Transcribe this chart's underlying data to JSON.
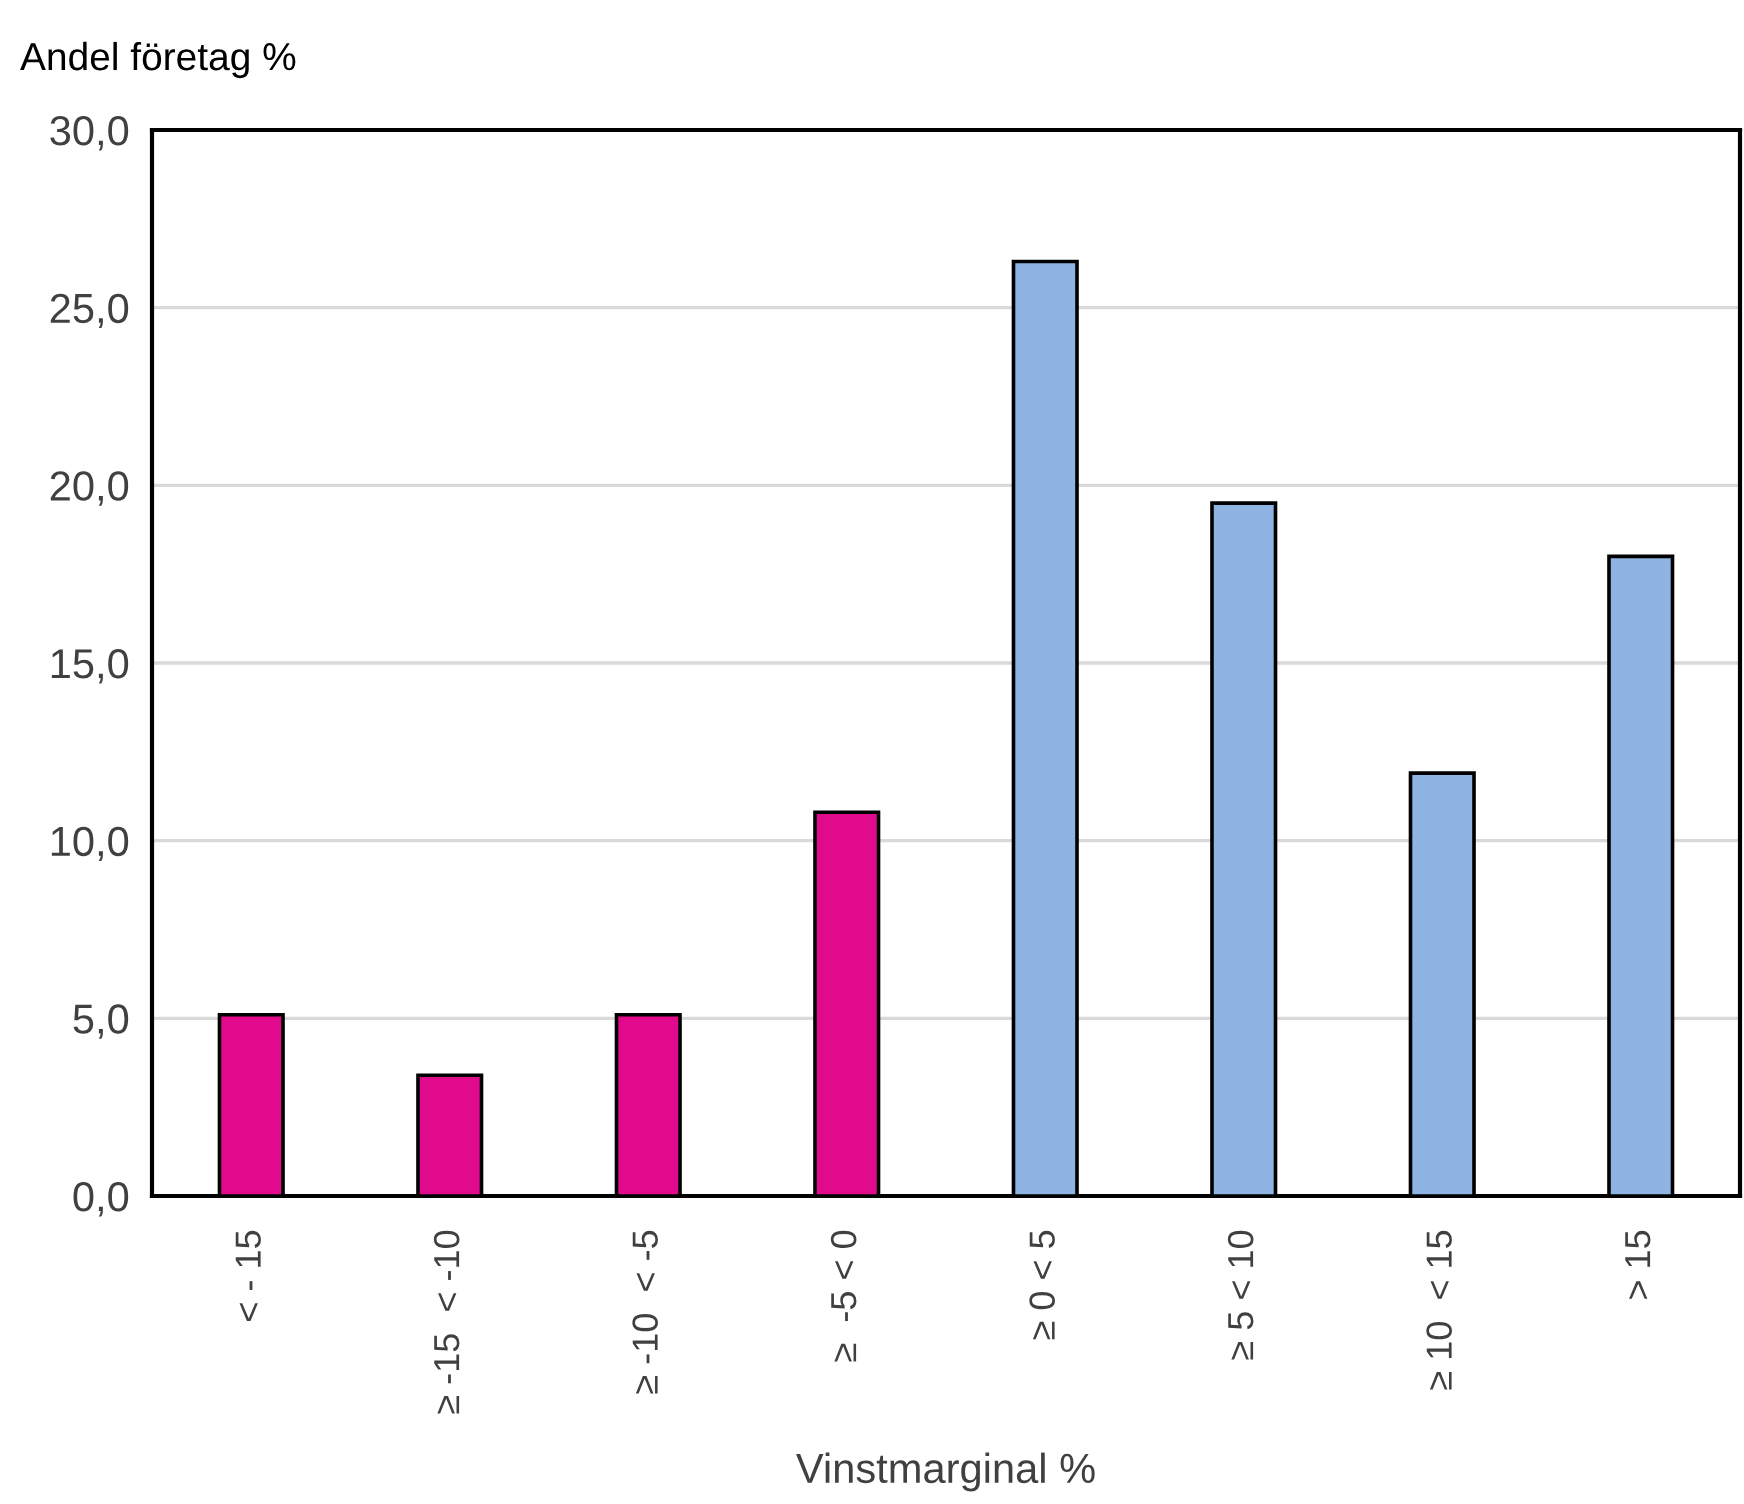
{
  "chart_data": {
    "type": "bar",
    "ylabel": "Andel företag %",
    "xlabel": "Vinstmarginal %",
    "categories": [
      "< - 15",
      "≥ -15  < -10",
      "≥ -10  < -5",
      "≥  -5 < 0",
      "≥ 0 < 5",
      "≥ 5 < 10",
      "≥ 10  < 15",
      "> 15"
    ],
    "values": [
      5.1,
      3.4,
      5.1,
      10.8,
      26.3,
      19.5,
      11.9,
      18.0
    ],
    "colors": [
      "#e20a8c",
      "#e20a8c",
      "#e20a8c",
      "#e20a8c",
      "#8db4e2",
      "#8db4e2",
      "#8db4e2",
      "#8db4e2"
    ],
    "ylim": [
      0,
      30
    ],
    "yticks": [
      {
        "value": 0,
        "label": "0,0"
      },
      {
        "value": 5,
        "label": "5,0"
      },
      {
        "value": 10,
        "label": "10,0"
      },
      {
        "value": 15,
        "label": "15,0"
      },
      {
        "value": 20,
        "label": "20,0"
      },
      {
        "value": 25,
        "label": "25,0"
      },
      {
        "value": 30,
        "label": "30,0"
      }
    ],
    "grid": "y",
    "legend": false
  }
}
